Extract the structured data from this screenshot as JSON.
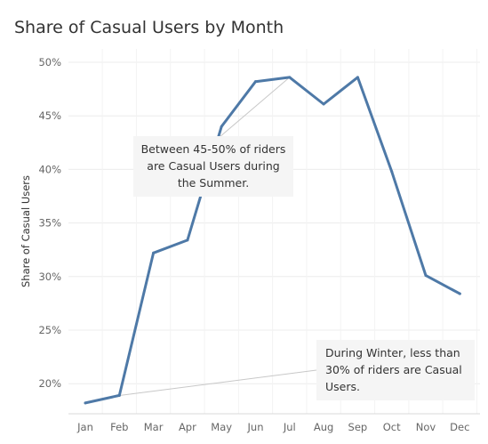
{
  "chart_data": {
    "type": "line",
    "title": "Share of Casual Users by Month",
    "xlabel": "",
    "ylabel": "Share of Casual Users",
    "categories": [
      "Jan",
      "Feb",
      "Mar",
      "Apr",
      "May",
      "Jun",
      "Jul",
      "Aug",
      "Sep",
      "Oct",
      "Nov",
      "Dec"
    ],
    "series": [
      {
        "values": [
          18.2,
          18.9,
          32.2,
          33.4,
          44.0,
          48.2,
          48.6,
          46.1,
          48.6,
          39.8,
          30.1,
          28.4
        ]
      }
    ],
    "ylim": [
      17.5,
      51.0
    ],
    "yticks": [
      20,
      25,
      30,
      35,
      40,
      45,
      50
    ],
    "ytick_labels": [
      "20%",
      "25%",
      "30%",
      "35%",
      "40%",
      "45%",
      "50%"
    ],
    "grid": true,
    "line_color": "#4e79a7",
    "annotations": [
      {
        "text": "Between 45-50% of riders are Casual Users during the Summer.",
        "target": {
          "x": "Jul",
          "y": 48.6
        }
      },
      {
        "text": "During Winter, less than 30% of riders are Casual Users.",
        "target": {
          "x": "Feb",
          "y": 18.9
        }
      }
    ]
  }
}
